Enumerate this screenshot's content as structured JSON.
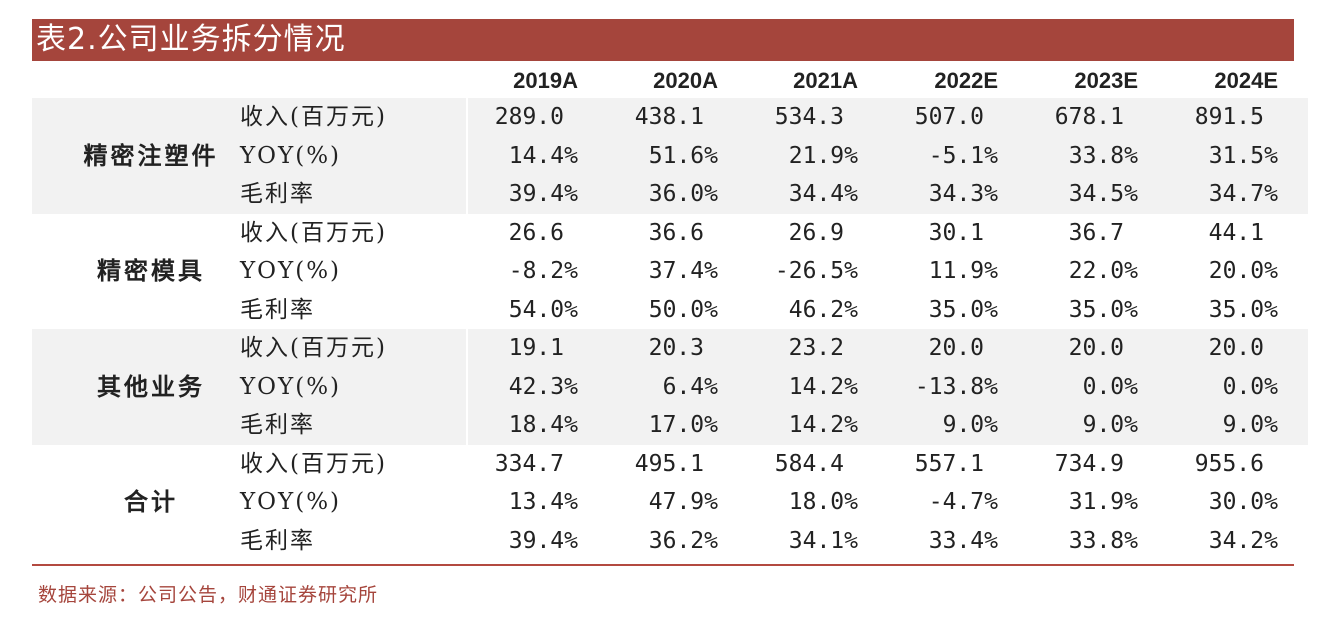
{
  "title": "表2.公司业务拆分情况",
  "years": [
    "2019A",
    "2020A",
    "2021A",
    "2022E",
    "2023E",
    "2024E"
  ],
  "metrics": [
    "收入(百万元)",
    "YOY(%)",
    "毛利率"
  ],
  "segments": [
    {
      "name": "精密注塑件",
      "rows": [
        [
          "289.0",
          "438.1",
          "534.3",
          "507.0",
          "678.1",
          "891.5"
        ],
        [
          "14.4%",
          "51.6%",
          "21.9%",
          "-5.1%",
          "33.8%",
          "31.5%"
        ],
        [
          "39.4%",
          "36.0%",
          "34.4%",
          "34.3%",
          "34.5%",
          "34.7%"
        ]
      ]
    },
    {
      "name": "精密模具",
      "rows": [
        [
          "26.6",
          "36.6",
          "26.9",
          "30.1",
          "36.7",
          "44.1"
        ],
        [
          "-8.2%",
          "37.4%",
          "-26.5%",
          "11.9%",
          "22.0%",
          "20.0%"
        ],
        [
          "54.0%",
          "50.0%",
          "46.2%",
          "35.0%",
          "35.0%",
          "35.0%"
        ]
      ]
    },
    {
      "name": "其他业务",
      "rows": [
        [
          "19.1",
          "20.3",
          "23.2",
          "20.0",
          "20.0",
          "20.0"
        ],
        [
          "42.3%",
          "6.4%",
          "14.2%",
          "-13.8%",
          "0.0%",
          "0.0%"
        ],
        [
          "18.4%",
          "17.0%",
          "14.2%",
          "9.0%",
          "9.0%",
          "9.0%"
        ]
      ]
    },
    {
      "name": "合计",
      "rows": [
        [
          "334.7",
          "495.1",
          "584.4",
          "557.1",
          "734.9",
          "955.6"
        ],
        [
          "13.4%",
          "47.9%",
          "18.0%",
          "-4.7%",
          "31.9%",
          "30.0%"
        ],
        [
          "39.4%",
          "36.2%",
          "34.1%",
          "33.4%",
          "33.8%",
          "34.2%"
        ]
      ]
    }
  ],
  "source": "数据来源：公司公告，财通证券研究所",
  "colors": {
    "accent": "#a5453c",
    "shade": "#f2f2f2"
  }
}
